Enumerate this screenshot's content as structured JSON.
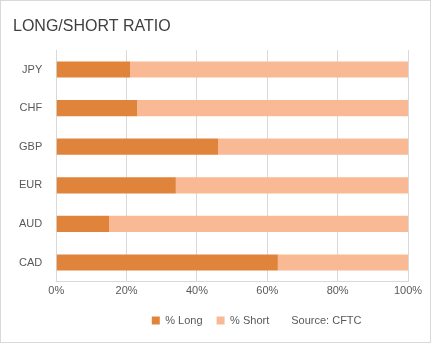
{
  "chart_data": {
    "type": "bar",
    "title": "LONG/SHORT RATIO",
    "orientation": "horizontal",
    "stacked": true,
    "categories": [
      "JPY",
      "CHF",
      "GBP",
      "EUR",
      "AUD",
      "CAD"
    ],
    "series": [
      {
        "name": "% Long",
        "color": "#e0843c",
        "values": [
          21,
          23,
          46,
          34,
          15,
          63
        ]
      },
      {
        "name": "% Short",
        "color": "#f9b994",
        "values": [
          79,
          77,
          54,
          66,
          85,
          37
        ]
      }
    ],
    "xlim": [
      0,
      100
    ],
    "xticks": [
      {
        "value": 0,
        "label": "0%"
      },
      {
        "value": 20,
        "label": "20%"
      },
      {
        "value": 40,
        "label": "40%"
      },
      {
        "value": 60,
        "label": "60%"
      },
      {
        "value": 80,
        "label": "80%"
      },
      {
        "value": 100,
        "label": "100%"
      }
    ],
    "grid": true,
    "legend": "bottom",
    "annotations": [
      "Source: CFTC"
    ]
  }
}
